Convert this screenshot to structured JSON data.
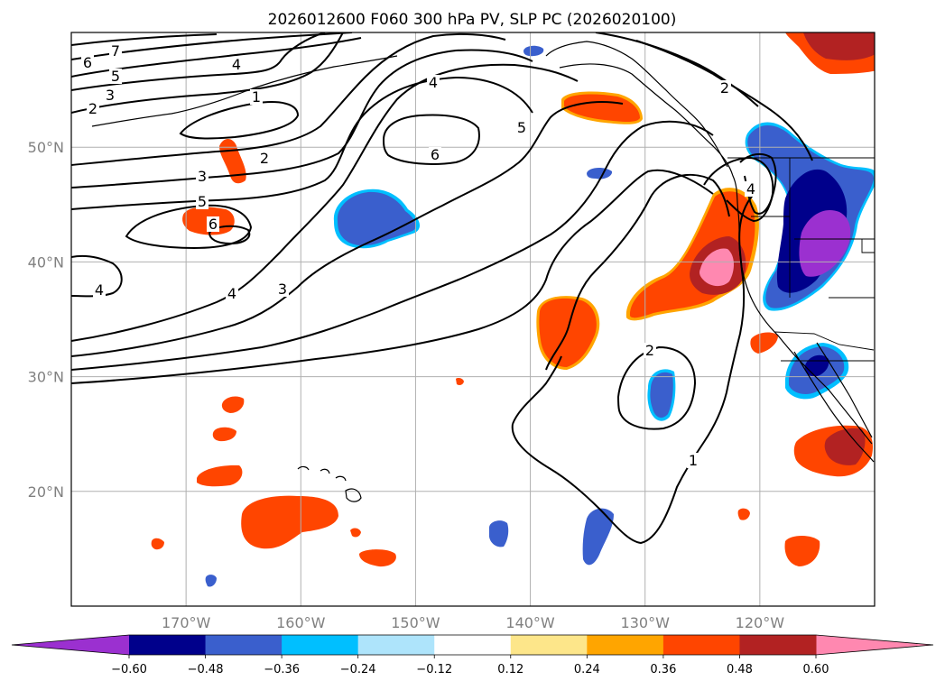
{
  "chart_data": {
    "type": "contour-map",
    "title": "2026012600 F060 300 hPa PV, SLP PC (2026020100)",
    "extent": {
      "lon": [
        -180,
        -110
      ],
      "lat": [
        10,
        60
      ]
    },
    "lat_ticks": [
      {
        "value": 20,
        "label": "20°N"
      },
      {
        "value": 30,
        "label": "30°N"
      },
      {
        "value": 40,
        "label": "40°N"
      },
      {
        "value": 50,
        "label": "50°N"
      }
    ],
    "lon_ticks": [
      {
        "value": -170,
        "label": "170°W"
      },
      {
        "value": -160,
        "label": "160°W"
      },
      {
        "value": -150,
        "label": "150°W"
      },
      {
        "value": -140,
        "label": "140°W"
      },
      {
        "value": -130,
        "label": "130°W"
      },
      {
        "value": -120,
        "label": "120°W"
      }
    ],
    "grid": true,
    "colorbar": {
      "orientation": "horizontal",
      "extend": "both",
      "levels": [
        -0.72,
        -0.6,
        -0.48,
        -0.36,
        -0.24,
        -0.12,
        0.12,
        0.24,
        0.36,
        0.48,
        0.6,
        0.72
      ],
      "colors": [
        "#9b30d0",
        "#00008b",
        "#3a5fcd",
        "#00bfff",
        "#aee4fb",
        "#ffffff",
        "#fde68a",
        "#ffa500",
        "#ff4500",
        "#b22222",
        "#ff88b0"
      ],
      "tick_labels": [
        "−0.60",
        "−0.48",
        "−0.36",
        "−0.24",
        "−0.12",
        "0.12",
        "0.24",
        "0.36",
        "0.48",
        "0.60"
      ]
    },
    "pv_anomaly_features": [
      {
        "value": -0.48,
        "lon": -121,
        "lat": 44.5
      },
      {
        "value": -0.36,
        "lon": -151.5,
        "lat": 43.5
      },
      {
        "value": 0.36,
        "lon": -125,
        "lat": 40
      },
      {
        "value": 0.36,
        "lon": -137,
        "lat": 33
      },
      {
        "value": 0.36,
        "lon": -160.5,
        "lat": 17.5
      },
      {
        "value": 0.36,
        "lon": -114.5,
        "lat": 23
      },
      {
        "value": -0.36,
        "lon": -118,
        "lat": 30
      }
    ],
    "slp_contour_labels": [
      "7",
      "6",
      "5",
      "3",
      "2",
      "4",
      "1",
      "4",
      "6",
      "5",
      "2",
      "3",
      "5",
      "6",
      "4",
      "4",
      "3",
      "2",
      "1",
      "2",
      "4"
    ]
  }
}
